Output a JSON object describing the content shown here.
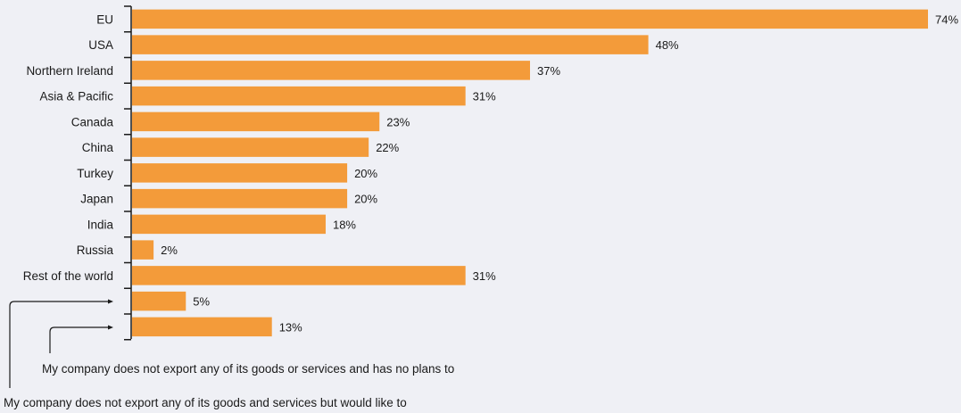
{
  "chart_data": {
    "type": "bar",
    "orientation": "horizontal",
    "categories": [
      "EU",
      "USA",
      "Northern Ireland",
      "Asia & Pacific",
      "Canada",
      "China",
      "Turkey",
      "Japan",
      "India",
      "Russia",
      "Rest of the world",
      "",
      ""
    ],
    "values": [
      74,
      48,
      37,
      31,
      23,
      22,
      20,
      20,
      18,
      2,
      31,
      5,
      13
    ],
    "value_labels": [
      "74%",
      "48%",
      "37%",
      "31%",
      "23%",
      "22%",
      "20%",
      "20%",
      "18%",
      "2%",
      "31%",
      "5%",
      "13%"
    ],
    "annotations": [
      {
        "text": "My company does not export any of its goods or services and has no plans to",
        "points_to_category_index": 12
      },
      {
        "text": "My company does not export any of its goods and services but would like to",
        "points_to_category_index": 11
      }
    ],
    "bar_color": "#f39b3a",
    "xlim": [
      0,
      74
    ],
    "grid": false,
    "legend": "none"
  }
}
